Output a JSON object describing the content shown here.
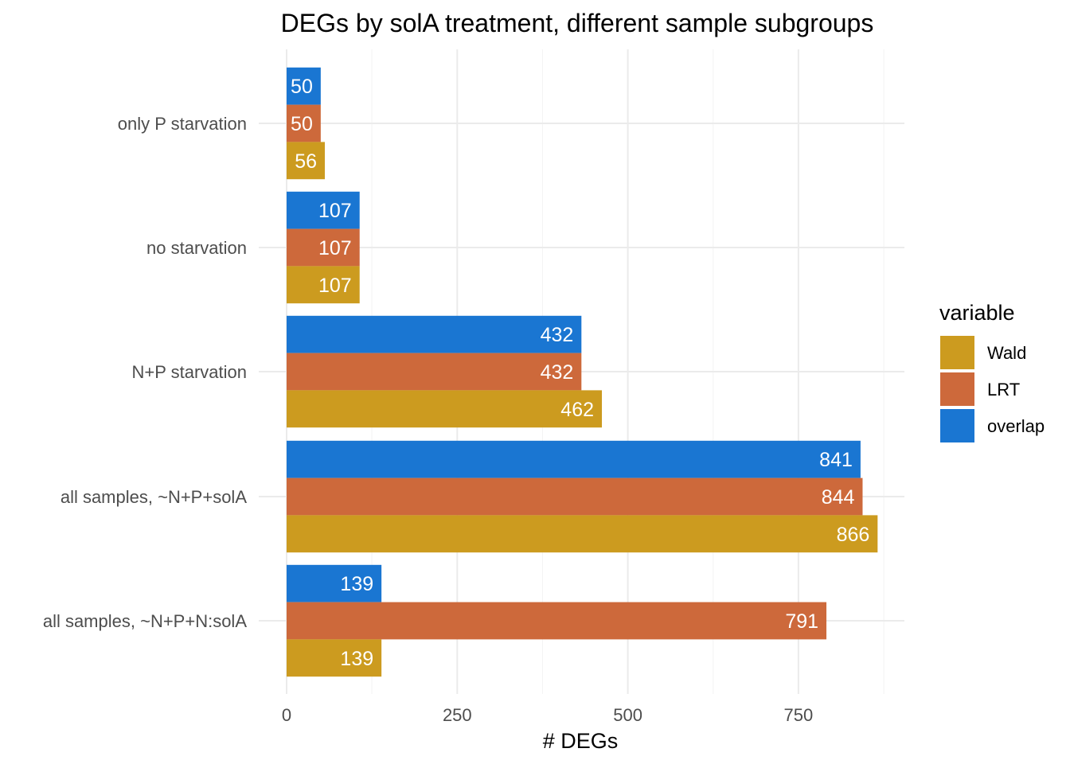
{
  "chart_data": {
    "type": "bar",
    "orientation": "horizontal",
    "title": "DEGs by solA treatment, different sample subgroups",
    "xlabel": "# DEGs",
    "ylabel": "",
    "xlim": [
      0,
      905
    ],
    "xticks": [
      0,
      250,
      500,
      750
    ],
    "grid": true,
    "categories": [
      "only P starvation",
      "no starvation",
      "N+P starvation",
      "all samples, ~N+P+solA",
      "all samples, ~N+P+N:solA"
    ],
    "series": [
      {
        "name": "overlap",
        "color": "#1a76d2",
        "values": [
          50,
          107,
          432,
          841,
          139
        ]
      },
      {
        "name": "LRT",
        "color": "#cd693b",
        "values": [
          50,
          107,
          432,
          844,
          791
        ]
      },
      {
        "name": "Wald",
        "color": "#cc9b1f",
        "values": [
          56,
          107,
          462,
          866,
          139
        ]
      }
    ],
    "legend": {
      "title": "variable",
      "position": "right",
      "order": [
        "Wald",
        "LRT",
        "overlap"
      ]
    }
  }
}
